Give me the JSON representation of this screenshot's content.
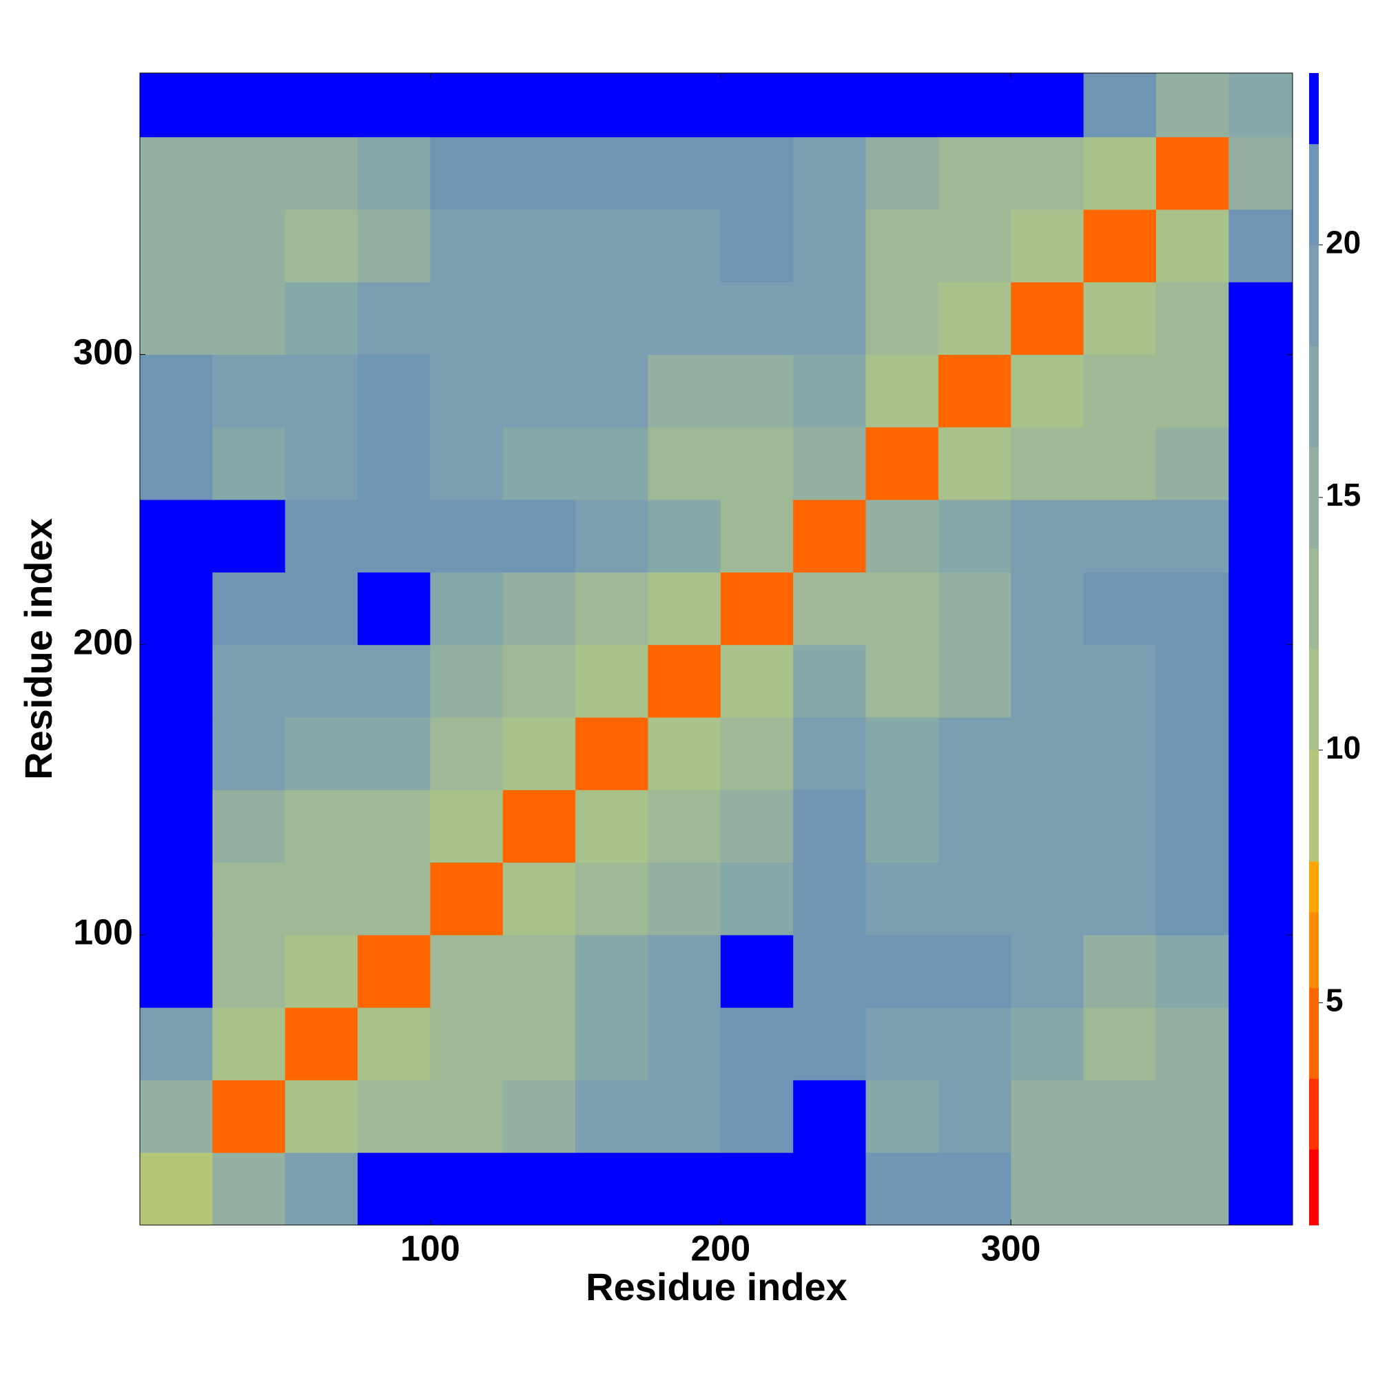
{
  "chart_data": {
    "type": "heatmap",
    "xlabel": "Residue index",
    "ylabel": "Residue index",
    "xlim": [
      0,
      397
    ],
    "ylim": [
      0,
      397
    ],
    "xticks": [
      100,
      200,
      300
    ],
    "yticks": [
      100,
      200,
      300
    ],
    "xbins": [
      0,
      25,
      50,
      75,
      100,
      125,
      150,
      175,
      200,
      225,
      250,
      275,
      300,
      325,
      350,
      375,
      397
    ],
    "ybins": [
      0,
      25,
      50,
      75,
      100,
      125,
      150,
      175,
      200,
      225,
      250,
      275,
      300,
      325,
      350,
      375,
      397
    ],
    "values": [
      [
        8,
        16,
        20,
        23,
        23,
        23,
        23,
        23,
        23,
        23,
        21,
        22,
        16,
        15,
        16,
        23
      ],
      [
        16,
        5,
        12,
        13,
        14,
        16,
        19,
        19,
        21,
        23,
        18,
        19,
        15,
        15,
        16,
        23
      ],
      [
        20,
        12,
        5,
        12,
        13,
        14,
        17,
        20,
        22,
        22,
        19,
        20,
        17,
        14,
        15,
        23
      ],
      [
        23,
        13,
        12,
        5,
        13,
        14,
        17,
        20,
        23,
        22,
        21,
        22,
        20,
        15,
        17,
        23
      ],
      [
        23,
        14,
        13,
        13,
        5,
        12,
        13,
        15,
        18,
        22,
        19,
        20,
        20,
        19,
        22,
        23
      ],
      [
        23,
        16,
        14,
        14,
        12,
        5,
        12,
        13,
        15,
        21,
        17,
        20,
        20,
        20,
        22,
        23
      ],
      [
        23,
        19,
        17,
        17,
        13,
        12,
        5,
        12,
        13,
        19,
        17,
        19,
        20,
        20,
        22,
        23
      ],
      [
        23,
        19,
        20,
        20,
        15,
        13,
        12,
        5,
        12,
        17,
        14,
        15,
        19,
        19,
        22,
        23
      ],
      [
        23,
        21,
        22,
        23,
        18,
        15,
        13,
        12,
        5,
        14,
        14,
        16,
        20,
        21,
        22,
        23
      ],
      [
        23,
        23,
        22,
        22,
        22,
        21,
        19,
        17,
        14,
        5,
        15,
        17,
        19,
        20,
        20,
        23
      ],
      [
        21,
        18,
        19,
        21,
        19,
        17,
        17,
        14,
        14,
        15,
        5,
        12,
        13,
        14,
        15,
        23
      ],
      [
        22,
        19,
        20,
        22,
        20,
        20,
        19,
        15,
        16,
        17,
        12,
        5,
        12,
        13,
        14,
        23
      ],
      [
        16,
        15,
        17,
        20,
        20,
        20,
        20,
        19,
        20,
        19,
        13,
        12,
        5,
        12,
        13,
        23
      ],
      [
        15,
        15,
        14,
        15,
        19,
        20,
        20,
        19,
        21,
        20,
        14,
        13,
        12,
        5,
        12,
        21
      ],
      [
        16,
        16,
        15,
        17,
        22,
        22,
        22,
        22,
        22,
        20,
        15,
        14,
        13,
        12,
        5,
        16
      ],
      [
        23,
        23,
        23,
        23,
        23,
        23,
        23,
        23,
        23,
        23,
        23,
        23,
        23,
        21,
        16,
        18
      ]
    ],
    "colorbar": {
      "lim": [
        0.6,
        23.4
      ],
      "ticks": [
        5,
        10,
        15,
        20
      ],
      "levels": [
        0.6,
        2.1,
        3.5,
        5.3,
        6.8,
        7.8,
        10,
        12,
        14,
        16,
        18,
        20,
        22,
        23.4
      ],
      "colors": [
        "#ff0000",
        "#ff3300",
        "#ff6600",
        "#ff8c00",
        "#ffa500",
        "#b5c77a",
        "#a9c18a",
        "#9fb997",
        "#93b0a0",
        "#87a8a8",
        "#7b9fb0",
        "#6f95b5",
        "#0000ff"
      ]
    }
  }
}
